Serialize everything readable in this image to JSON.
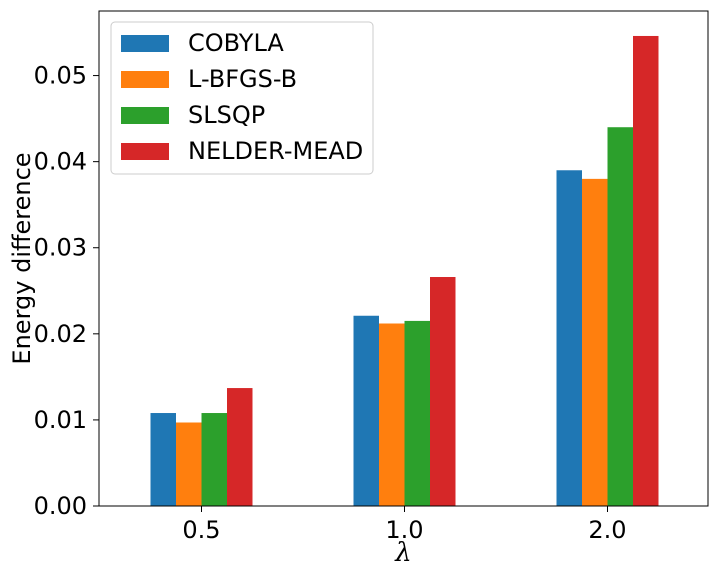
{
  "chart_data": {
    "type": "bar",
    "title": "",
    "xlabel": "λ",
    "ylabel": "Energy difference",
    "categories": [
      "0.5",
      "1.0",
      "2.0"
    ],
    "ylim": [
      0,
      0.0575
    ],
    "yticks": [
      "0.00",
      "0.01",
      "0.02",
      "0.03",
      "0.04",
      "0.05"
    ],
    "ytick_values": [
      0,
      0.01,
      0.02,
      0.03,
      0.04,
      0.05
    ],
    "grid": false,
    "legend_position": "top-left",
    "series": [
      {
        "name": "COBYLA",
        "color": "#1f77b4",
        "values": [
          0.0108,
          0.0221,
          0.039
        ]
      },
      {
        "name": "L-BFGS-B",
        "color": "#ff7f0e",
        "values": [
          0.0097,
          0.0212,
          0.038
        ]
      },
      {
        "name": "SLSQP",
        "color": "#2ca02c",
        "values": [
          0.0108,
          0.0215,
          0.044
        ]
      },
      {
        "name": "NELDER-MEAD",
        "color": "#d62728",
        "values": [
          0.0137,
          0.0266,
          0.0546
        ]
      }
    ]
  }
}
